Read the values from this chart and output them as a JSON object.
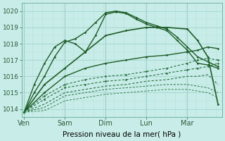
{
  "background_color": "#c8ede8",
  "grid_color_major": "#9ecdc8",
  "grid_color_minor": "#b8e0dc",
  "line_color": "#1e5c28",
  "ylim": [
    1013.5,
    1020.5
  ],
  "yticks": [
    1014,
    1015,
    1016,
    1017,
    1018,
    1019,
    1020
  ],
  "xlabel": "Pression niveau de la mer( hPa )",
  "xtick_labels": [
    "Ven",
    "Sam",
    "Dim",
    "Lun",
    "Mar"
  ],
  "xlabel_fontsize": 7.5,
  "xtick_fontsize": 7,
  "ytick_fontsize": 6.5,
  "xlim": [
    -0.05,
    4.85
  ],
  "xtick_positions": [
    0,
    1.0,
    2.0,
    3.0,
    4.0
  ],
  "series": [
    {
      "x": [
        0,
        0.25,
        0.5,
        0.75,
        1.0,
        1.25,
        1.5,
        1.75,
        2.0,
        2.25,
        2.5,
        2.75,
        3.0,
        3.25,
        3.5,
        3.75,
        4.0,
        4.25,
        4.5,
        4.75
      ],
      "y": [
        1013.8,
        1015.5,
        1016.8,
        1017.8,
        1018.2,
        1018.0,
        1017.5,
        1018.5,
        1019.8,
        1019.95,
        1019.85,
        1019.5,
        1019.2,
        1019.0,
        1018.8,
        1018.2,
        1017.6,
        1016.8,
        1016.7,
        1016.5
      ],
      "marker": "D",
      "markersize": 1.5,
      "lw": 1.0,
      "color": "#1e5c28",
      "ls": "-"
    },
    {
      "x": [
        0,
        0.25,
        0.5,
        0.75,
        1.0,
        1.25,
        1.5,
        1.75,
        2.0,
        2.25,
        2.5,
        2.75,
        3.0,
        3.25,
        3.5,
        3.75,
        4.0,
        4.25,
        4.5,
        4.75
      ],
      "y": [
        1013.8,
        1015.0,
        1016.0,
        1017.2,
        1018.1,
        1018.3,
        1018.7,
        1019.3,
        1019.9,
        1020.0,
        1019.9,
        1019.6,
        1019.3,
        1019.1,
        1018.9,
        1018.4,
        1017.8,
        1017.2,
        1016.9,
        1016.6
      ],
      "marker": "D",
      "markersize": 1.5,
      "lw": 1.0,
      "color": "#1e5c28",
      "ls": "-"
    },
    {
      "x": [
        0,
        0.5,
        1.0,
        1.5,
        2.0,
        2.5,
        3.0,
        3.5,
        4.0,
        4.25,
        4.5,
        4.75
      ],
      "y": [
        1013.8,
        1015.5,
        1016.5,
        1017.5,
        1018.5,
        1018.8,
        1019.0,
        1019.0,
        1018.9,
        1018.2,
        1017.2,
        1014.3
      ],
      "marker": "D",
      "markersize": 1.5,
      "lw": 1.2,
      "color": "#1e5c28",
      "ls": "-"
    },
    {
      "x": [
        0,
        0.5,
        1.0,
        1.5,
        2.0,
        2.5,
        3.0,
        3.5,
        4.0,
        4.25,
        4.5,
        4.75
      ],
      "y": [
        1013.8,
        1015.0,
        1016.0,
        1016.5,
        1016.8,
        1017.0,
        1017.2,
        1017.3,
        1017.5,
        1017.6,
        1017.8,
        1017.7
      ],
      "marker": "D",
      "markersize": 1.5,
      "lw": 1.0,
      "color": "#1e5c28",
      "ls": "-"
    },
    {
      "x": [
        0,
        0.5,
        1.0,
        1.5,
        2.0,
        2.5,
        3.0,
        3.5,
        4.0,
        4.25,
        4.5,
        4.75
      ],
      "y": [
        1013.8,
        1014.8,
        1015.5,
        1015.8,
        1016.0,
        1016.1,
        1016.3,
        1016.5,
        1016.8,
        1017.0,
        1017.1,
        1017.0
      ],
      "marker": "D",
      "markersize": 1.5,
      "lw": 0.8,
      "color": "#2a7040",
      "ls": "--"
    },
    {
      "x": [
        0,
        0.5,
        1.0,
        1.5,
        2.0,
        2.5,
        3.0,
        3.5,
        4.0,
        4.25,
        4.5,
        4.75
      ],
      "y": [
        1013.8,
        1014.6,
        1015.3,
        1015.5,
        1015.7,
        1015.8,
        1016.0,
        1016.2,
        1016.4,
        1016.5,
        1016.6,
        1016.8
      ],
      "marker": "D",
      "markersize": 1.5,
      "lw": 0.8,
      "color": "#2a7040",
      "ls": "--"
    },
    {
      "x": [
        0,
        0.5,
        1.0,
        1.5,
        2.0,
        2.5,
        3.0,
        3.5,
        4.0,
        4.25,
        4.5,
        4.75
      ],
      "y": [
        1013.8,
        1014.3,
        1015.0,
        1015.2,
        1015.4,
        1015.5,
        1015.7,
        1015.8,
        1016.0,
        1016.0,
        1016.1,
        1015.5
      ],
      "marker": null,
      "markersize": 0,
      "lw": 0.8,
      "color": "#2a7040",
      "ls": "--"
    },
    {
      "x": [
        0,
        0.5,
        1.0,
        1.5,
        2.0,
        2.5,
        3.0,
        3.5,
        4.0,
        4.5,
        4.75
      ],
      "y": [
        1013.8,
        1014.1,
        1014.8,
        1015.0,
        1015.2,
        1015.3,
        1015.4,
        1015.5,
        1015.5,
        1015.3,
        1015.0
      ],
      "marker": null,
      "markersize": 0,
      "lw": 0.7,
      "color": "#2a7040",
      "ls": "--"
    },
    {
      "x": [
        0,
        0.5,
        1.0,
        1.5,
        2.0,
        2.5,
        3.0,
        3.5,
        4.0,
        4.5,
        4.75
      ],
      "y": [
        1013.8,
        1013.9,
        1014.5,
        1014.7,
        1014.9,
        1015.0,
        1015.1,
        1015.2,
        1015.2,
        1015.0,
        1014.7
      ],
      "marker": null,
      "markersize": 0,
      "lw": 0.7,
      "color": "#3a8050",
      "ls": "--"
    }
  ],
  "vlines_major": [
    0,
    1.0,
    2.0,
    3.0,
    4.0
  ],
  "vlines_minor_step": 0.0833333
}
